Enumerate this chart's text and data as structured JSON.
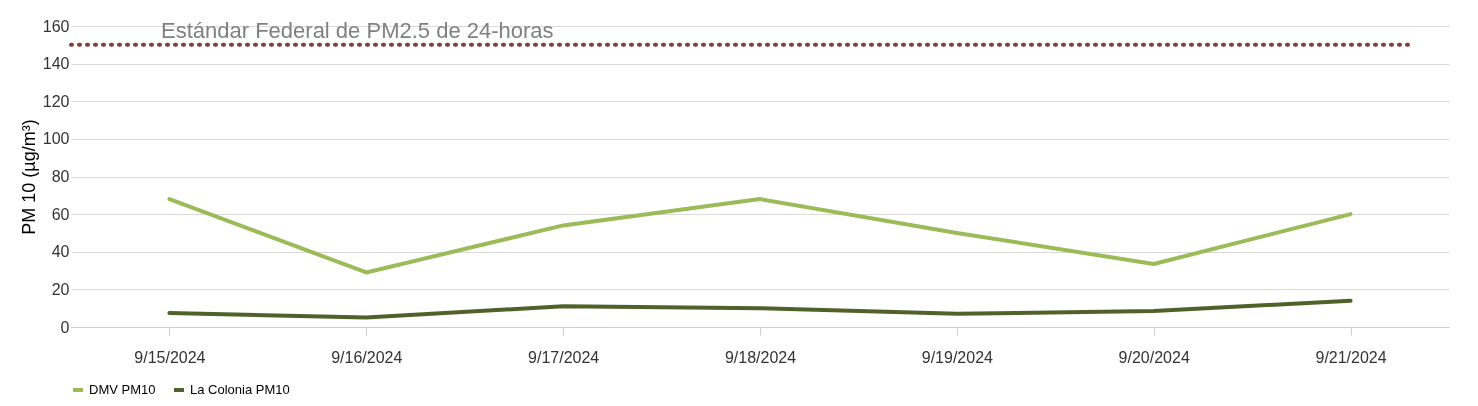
{
  "chart_data": {
    "type": "line",
    "ylabel": "PM 10 (µg/m³)",
    "categories": [
      "9/15/2024",
      "9/16/2024",
      "9/17/2024",
      "9/18/2024",
      "9/19/2024",
      "9/20/2024",
      "9/21/2024"
    ],
    "series": [
      {
        "name": "DMV PM10",
        "color": "#9bbb59",
        "values": [
          68,
          29,
          54,
          68,
          50,
          33.5,
          60
        ]
      },
      {
        "name": "La Colonia PM10",
        "color": "#4f6228",
        "values": [
          7.5,
          5,
          11,
          10,
          7,
          8.5,
          14
        ]
      }
    ],
    "ref_lines": [
      {
        "axis": "y",
        "value": 150,
        "label": "Estándar Federal de PM2.5 de 24-horas",
        "color": "#843c39",
        "line_style": "dotted"
      }
    ],
    "ylim": [
      0,
      160
    ],
    "yticks": [
      0,
      20,
      40,
      60,
      80,
      100,
      120,
      140,
      160
    ],
    "grid": "y",
    "legend": "bottom",
    "marker": "none",
    "line_style": "solid"
  }
}
